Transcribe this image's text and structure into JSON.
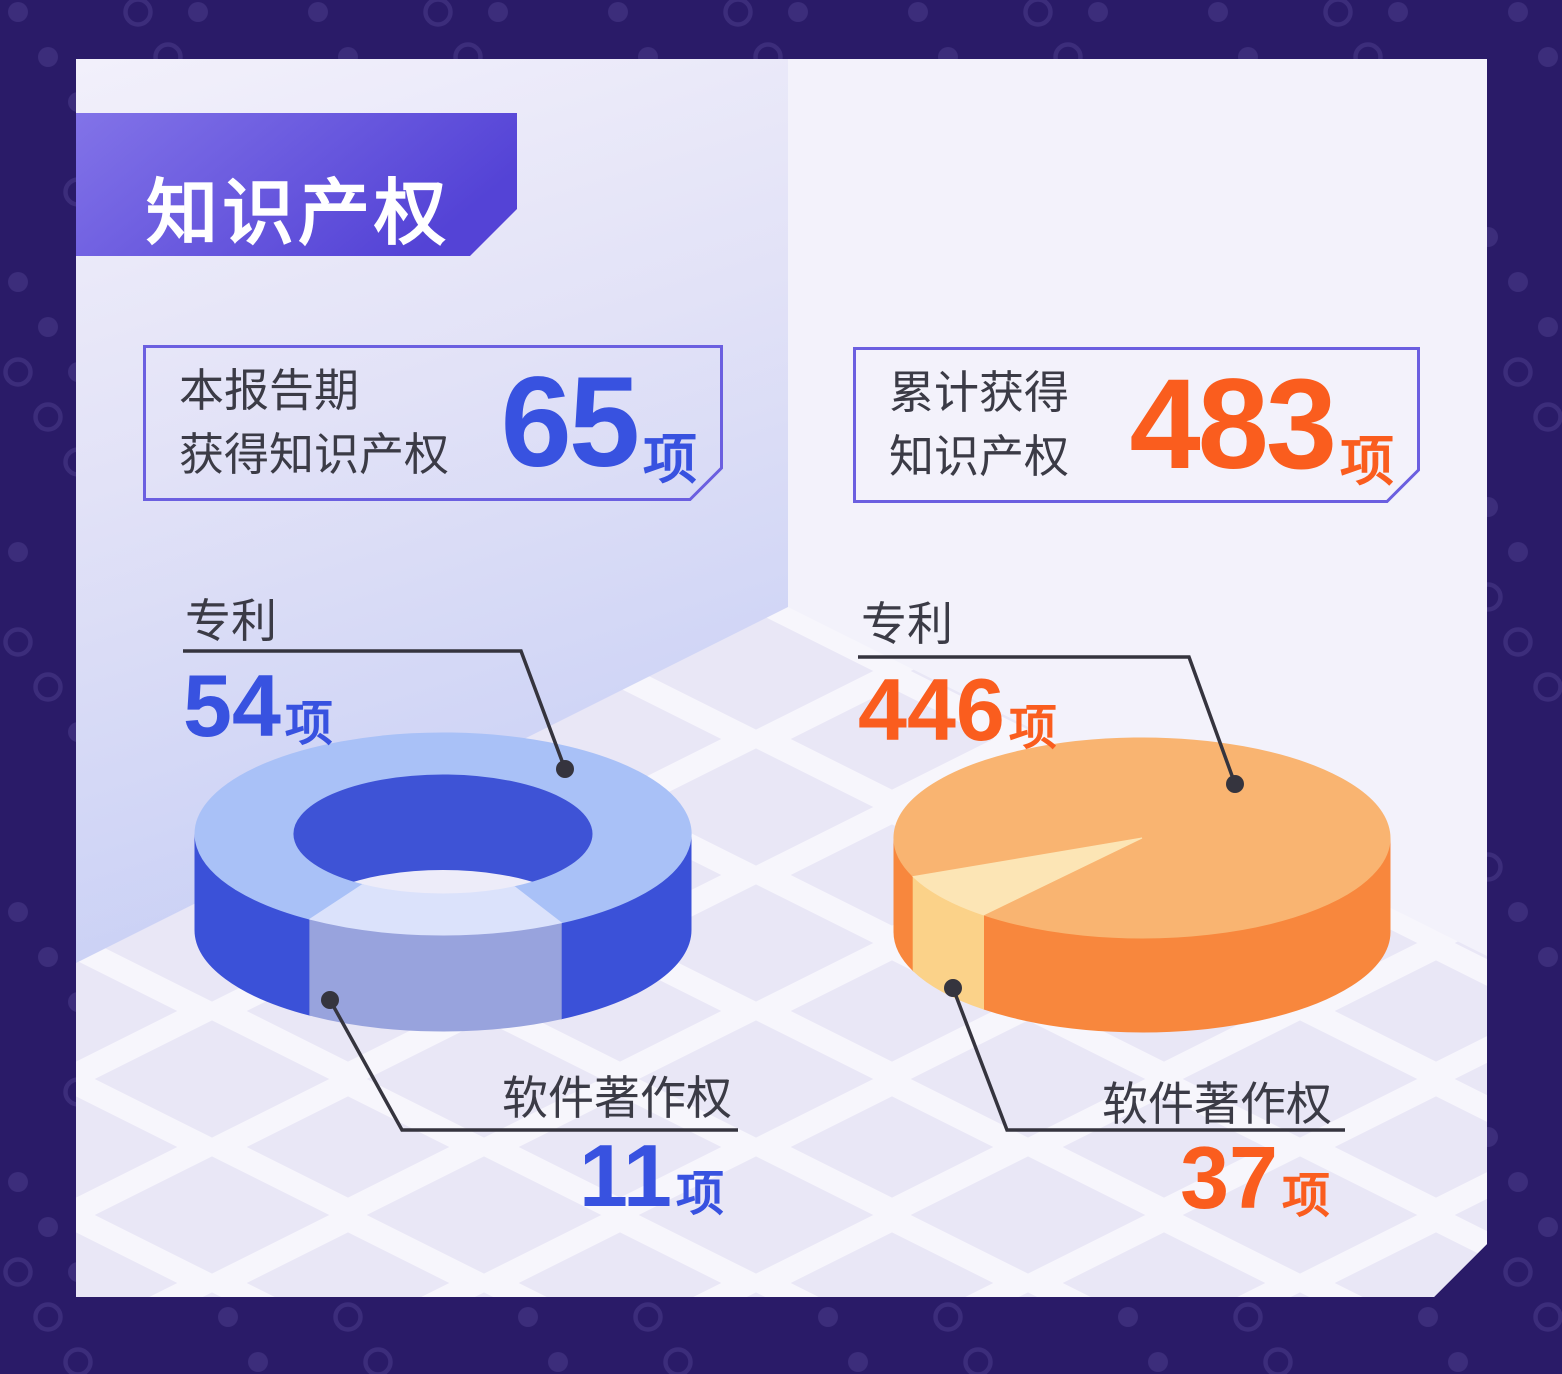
{
  "title": "知识产权",
  "summary_cards": [
    {
      "label_line1": "本报告期",
      "label_line2": "获得知识产权",
      "value": "65",
      "unit": "项",
      "accent_color": "#3852e0"
    },
    {
      "label_line1": "累计获得",
      "label_line2": "知识产权",
      "value": "483",
      "unit": "项",
      "accent_color": "#fa5d1e"
    }
  ],
  "chart_data": [
    {
      "type": "pie",
      "style": "3d-donut",
      "title": "本报告期获得知识产权",
      "total": 65,
      "unit": "项",
      "slices": [
        {
          "label": "专利",
          "value": 54,
          "top_color": "#a9c1f7",
          "side_color": "#3b51d8"
        },
        {
          "label": "软件著作权",
          "value": 11,
          "top_color": "#dbe2fb",
          "side_color": "#98a3dd"
        }
      ],
      "legend_position": "callout-lines",
      "value_color": "#3852e0"
    },
    {
      "type": "pie",
      "style": "3d-pie",
      "title": "累计获得知识产权",
      "total": 483,
      "unit": "项",
      "slices": [
        {
          "label": "专利",
          "value": 446,
          "top_color": "#f9b471",
          "side_color": "#f8873d"
        },
        {
          "label": "软件著作权",
          "value": 37,
          "top_color": "#fce5b5",
          "side_color": "#fbd289"
        }
      ],
      "legend_position": "callout-lines",
      "value_color": "#fa5d1e"
    }
  ],
  "colors": {
    "page_background": "#2a1b68",
    "background_dots": "#3c2d7b",
    "card_floor": "#e9e7f6",
    "floor_lattice": "#f7f6fc",
    "wall_left_gradient": [
      "#f2f0fb",
      "#c9d0f5"
    ],
    "wall_right": "#f3f2fb",
    "ribbon_gradient": [
      "#8273e8",
      "#5443d6"
    ],
    "title_text": "#ffffff",
    "stat_box_border": "#6b5fe0",
    "body_text": "#3b3b46",
    "leader_line": "#35343e",
    "accent_blue": "#3852e0",
    "accent_orange": "#fa5d1e"
  }
}
